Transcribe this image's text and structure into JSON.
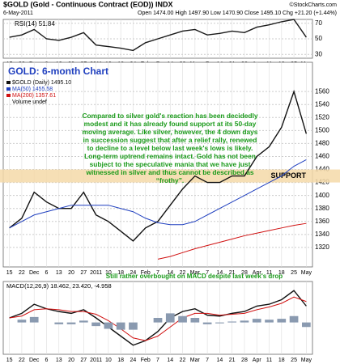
{
  "header": {
    "symbol": "$GOLD (Gold - Continuous Contract (EOD)) INDX",
    "credit": "©StockCharts.com",
    "date": "6-May-2011",
    "quote": "Open 1474.00 High 1497.90 Low 1470.90 Close 1495.10 Chg +21.20 (+1.44%)"
  },
  "chart_data": [
    {
      "type": "line",
      "categories": [
        "15",
        "22",
        "Dec",
        "6",
        "13",
        "20",
        "27",
        "2011",
        "10",
        "18",
        "24",
        "Feb",
        "7",
        "14",
        "22",
        "Mar",
        "7",
        "14",
        "21",
        "28",
        "Apr",
        "11",
        "18",
        "25",
        "May"
      ],
      "series": [
        {
          "name": "RSI(14) 51.84",
          "color": "#1a1a1a",
          "values": [
            52,
            55,
            62,
            50,
            48,
            52,
            58,
            42,
            40,
            38,
            35,
            45,
            50,
            55,
            60,
            62,
            55,
            57,
            60,
            58,
            65,
            68,
            72,
            75,
            52
          ]
        }
      ],
      "ylim": [
        25,
        75
      ],
      "yticks": [
        30,
        50,
        70
      ],
      "grid": true
    },
    {
      "type": "line",
      "title": "GOLD: 6-month Chart",
      "categories": [
        "15",
        "22",
        "Dec",
        "6",
        "13",
        "20",
        "27",
        "2011",
        "10",
        "18",
        "24",
        "Feb",
        "7",
        "14",
        "22",
        "Mar",
        "7",
        "14",
        "21",
        "28",
        "Apr",
        "11",
        "18",
        "25",
        "May"
      ],
      "series": [
        {
          "name": "$GOLD (Daily) 1495.10",
          "color": "#111111",
          "values": [
            1350,
            1365,
            1405,
            1390,
            1380,
            1380,
            1405,
            1370,
            1360,
            1345,
            1330,
            1350,
            1360,
            1385,
            1410,
            1430,
            1420,
            1420,
            1430,
            1430,
            1460,
            1475,
            1505,
            1560,
            1495
          ]
        },
        {
          "name": "MA(50) 1455.58",
          "color": "#1f3fbf",
          "values": [
            1350,
            1360,
            1370,
            1375,
            1380,
            1385,
            1385,
            1385,
            1385,
            1380,
            1375,
            1365,
            1358,
            1355,
            1355,
            1360,
            1370,
            1380,
            1390,
            1400,
            1410,
            1420,
            1430,
            1445,
            1455
          ]
        },
        {
          "name": "MA(200) 1357.61",
          "color": "#d01010",
          "values": [
            null,
            null,
            null,
            null,
            null,
            null,
            null,
            null,
            null,
            null,
            null,
            null,
            1302,
            1306,
            1312,
            1318,
            1323,
            1328,
            1333,
            1338,
            1342,
            1346,
            1350,
            1354,
            1357
          ]
        }
      ],
      "legend_extra": "Volume undef",
      "support_band": [
        1420,
        1440
      ],
      "support_label": "SUPPORT",
      "support_color": "#f5d9a8",
      "annotation": "Compared to silver gold's reaction has been decidedly modest and it has already found support at its 50-day moving average. Like silver, however, the 4 down days in succession suggest that after a relief rally, renewed to decline to a level below last week's lows is likely. Long-term uptrend remains intact. Gold has not been subject to the speculative mania that we have just witnessed in silver and thus cannot be described as “frothy”.",
      "ylim": [
        1290,
        1605
      ],
      "yticks": [
        1320,
        1340,
        1360,
        1380,
        1400,
        1420,
        1440,
        1460,
        1480,
        1500,
        1520,
        1540,
        1560
      ],
      "grid": true
    },
    {
      "type": "line",
      "title": "MACD(12,26,9) 18.462, 23.420, -4.958",
      "annotation": "Still rather overbought on MACD despite last week's drop",
      "categories": [
        "15",
        "22",
        "Dec",
        "6",
        "13",
        "20",
        "27",
        "2011",
        "10",
        "18",
        "24",
        "Feb",
        "7",
        "14",
        "22",
        "Mar",
        "7",
        "14",
        "21",
        "28",
        "Apr",
        "11",
        "18",
        "25",
        "May"
      ],
      "series": [
        {
          "name": "MACD",
          "color": "#111111",
          "values": [
            5,
            10,
            20,
            15,
            12,
            10,
            14,
            5,
            -5,
            -15,
            -25,
            -20,
            -10,
            5,
            12,
            15,
            8,
            7,
            10,
            12,
            18,
            20,
            25,
            35,
            18
          ]
        },
        {
          "name": "Signal",
          "color": "#d01010",
          "values": [
            5,
            7,
            14,
            15,
            14,
            12,
            12,
            9,
            2,
            -7,
            -17,
            -20,
            -15,
            -5,
            5,
            10,
            10,
            8,
            9,
            10,
            14,
            17,
            21,
            28,
            23
          ]
        },
        {
          "name": "Histogram",
          "type": "bar",
          "color": "#8a9ab0",
          "values": [
            0,
            3,
            6,
            0,
            -2,
            -2,
            2,
            -4,
            -7,
            -8,
            -8,
            0,
            5,
            10,
            7,
            5,
            -2,
            -1,
            1,
            2,
            4,
            3,
            4,
            7,
            -5
          ]
        }
      ],
      "ylim": [
        -35,
        45
      ],
      "grid": true
    }
  ]
}
